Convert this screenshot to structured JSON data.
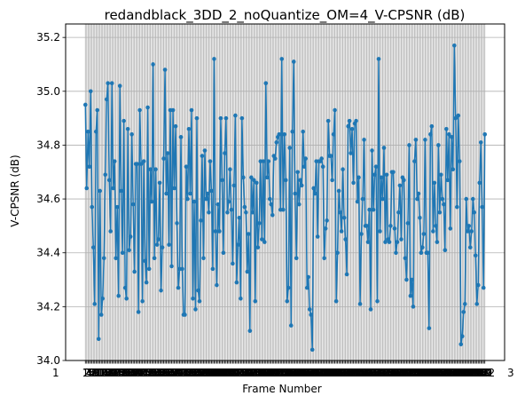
{
  "chart_data": {
    "type": "line",
    "title": "redandblack_3DD_2_noQuantize_OM=4_V-CPSNR (dB)",
    "xlabel": "Frame Number",
    "ylabel": "V-CPSNR (dB)",
    "ylim": [
      34.0,
      35.25
    ],
    "yticks": [
      "34.0",
      "34.2",
      "34.4",
      "34.6",
      "34.8",
      "35.0",
      "35.2"
    ],
    "x_first": 1,
    "x_last": 300,
    "xtick_overlap_text_left": "1",
    "xtick_overlap_text_right": "3",
    "grid": true,
    "marker": "circle",
    "color": "#1f77b4",
    "series": [
      {
        "values": [
          34.95,
          34.64,
          34.85,
          34.72,
          35.0,
          34.57,
          34.42,
          34.21,
          34.85,
          34.93,
          34.08,
          34.63,
          34.17,
          34.23,
          34.38,
          34.69,
          34.97,
          35.03,
          34.67,
          34.48,
          35.03,
          34.64,
          34.74,
          34.38,
          34.57,
          34.24,
          35.02,
          34.63,
          34.4,
          34.89,
          34.27,
          34.23,
          34.86,
          34.41,
          34.46,
          34.84,
          34.58,
          34.33,
          34.73,
          34.73,
          34.18,
          34.93,
          34.73,
          34.22,
          34.74,
          34.37,
          34.29,
          34.94,
          34.34,
          34.71,
          34.59,
          35.1,
          34.38,
          34.71,
          34.43,
          34.45,
          34.66,
          34.26,
          34.42,
          34.75,
          35.08,
          34.62,
          34.77,
          34.43,
          34.93,
          34.35,
          34.93,
          34.64,
          34.87,
          34.51,
          34.27,
          34.34,
          34.83,
          34.34,
          34.17,
          34.17,
          34.72,
          34.6,
          34.86,
          34.62,
          34.93,
          34.23,
          34.59,
          34.19,
          34.9,
          34.26,
          34.22,
          34.52,
          34.76,
          34.38,
          34.78,
          34.6,
          34.62,
          34.55,
          34.74,
          34.63,
          34.34,
          35.12,
          34.48,
          34.28,
          34.58,
          34.48,
          34.9,
          34.67,
          34.4,
          34.77,
          34.9,
          34.55,
          34.59,
          34.71,
          34.56,
          34.36,
          34.65,
          34.91,
          34.29,
          34.43,
          34.53,
          34.23,
          34.9,
          34.68,
          34.57,
          34.55,
          34.33,
          34.47,
          34.11,
          34.68,
          34.55,
          34.67,
          34.22,
          34.66,
          34.42,
          34.51,
          34.74,
          34.45,
          34.74,
          34.44,
          35.03,
          34.68,
          34.74,
          34.6,
          34.58,
          34.54,
          34.76,
          34.75,
          34.81,
          34.83,
          34.84,
          34.56,
          35.12,
          34.56,
          34.84,
          34.67,
          34.22,
          34.27,
          34.79,
          34.13,
          34.85,
          35.11,
          34.62,
          34.38,
          34.7,
          34.58,
          34.67,
          34.65,
          34.85,
          34.72,
          34.75,
          34.27,
          34.31,
          34.19,
          34.17,
          34.04,
          34.64,
          34.62,
          34.74,
          34.46,
          34.74,
          34.74,
          34.75,
          34.72,
          34.38,
          34.49,
          34.52,
          34.89,
          34.76,
          34.76,
          34.67,
          34.84,
          34.93,
          34.22,
          34.4,
          34.63,
          34.55,
          34.48,
          34.71,
          34.53,
          34.45,
          34.32,
          34.87,
          34.89,
          34.77,
          34.86,
          34.66,
          34.88,
          34.89,
          34.59,
          34.68,
          34.21,
          34.47,
          34.6,
          34.82,
          34.5,
          34.5,
          34.44,
          34.56,
          34.19,
          34.78,
          34.56,
          34.69,
          34.72,
          34.22,
          35.12,
          34.48,
          34.68,
          34.6,
          34.79,
          34.44,
          34.69,
          34.45,
          34.44,
          34.5,
          34.7,
          34.7,
          34.49,
          34.4,
          34.44,
          34.55,
          34.65,
          34.45,
          34.68,
          34.67,
          34.38,
          34.3,
          34.51,
          34.8,
          34.24,
          34.3,
          34.2,
          34.74,
          34.82,
          34.6,
          34.62,
          34.53,
          34.4,
          34.42,
          34.47,
          34.82,
          34.4,
          34.4,
          34.12,
          34.84,
          34.87,
          34.48,
          34.66,
          34.5,
          34.44,
          34.8,
          34.55,
          34.69,
          34.6,
          34.58,
          34.41,
          34.86,
          34.67,
          34.84,
          34.49,
          34.83,
          34.71,
          35.17,
          34.9,
          34.57,
          34.91,
          34.74,
          34.06,
          34.09,
          34.18,
          34.21,
          34.6,
          34.48,
          34.5,
          34.42,
          34.48,
          34.6,
          34.55,
          34.39,
          34.21,
          34.28,
          34.66,
          34.81,
          34.57,
          34.27,
          34.84
        ]
      }
    ]
  }
}
